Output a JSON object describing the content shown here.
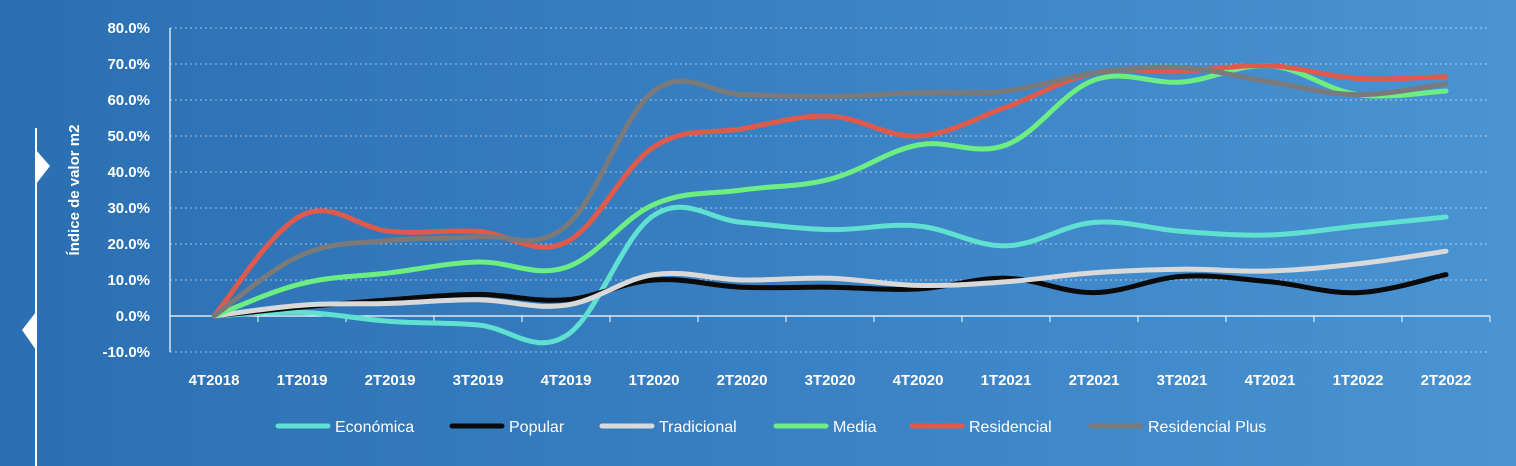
{
  "chart_data": {
    "type": "line",
    "title": "",
    "xlabel": "",
    "ylabel": "Índice de valor m2",
    "ylim": [
      -10,
      80
    ],
    "yticks": [
      "80.0%",
      "70.0%",
      "60.0%",
      "50.0%",
      "40.0%",
      "30.0%",
      "20.0%",
      "10.0%",
      "0.0%",
      "-10.0%"
    ],
    "grid": true,
    "legend_position": "bottom",
    "categories": [
      "4T2018",
      "1T2019",
      "2T2019",
      "3T2019",
      "4T2019",
      "1T2020",
      "2T2020",
      "3T2020",
      "4T2020",
      "1T2021",
      "2T2021",
      "3T2021",
      "4T2021",
      "1T2022",
      "2T2022"
    ],
    "series": [
      {
        "name": "Económica",
        "color": "#5fe0d0",
        "values": [
          0,
          1,
          -1.5,
          -2.5,
          -5.5,
          28,
          26,
          24,
          25,
          19.5,
          26,
          23.5,
          22.5,
          25,
          27.5
        ]
      },
      {
        "name": "Popular",
        "color": "#0a0a0a",
        "values": [
          0,
          2.5,
          4.5,
          6,
          4.5,
          10,
          8,
          8,
          7.5,
          10.5,
          6.5,
          11,
          9.5,
          6.5,
          11.5
        ]
      },
      {
        "name": "Tradicional",
        "color": "#d9d9d9",
        "values": [
          0,
          3,
          3.5,
          4.5,
          3,
          11.5,
          10,
          10.5,
          8.5,
          9.5,
          12,
          13,
          12.5,
          14.5,
          18
        ]
      },
      {
        "name": "Media",
        "color": "#6dee83",
        "values": [
          0,
          9,
          12,
          15,
          13.5,
          31,
          35,
          38,
          47.5,
          47.5,
          65.5,
          65,
          69.5,
          61.5,
          62.5
        ]
      },
      {
        "name": "Residencial",
        "color": "#e05a4b",
        "values": [
          0,
          28,
          23.5,
          23.5,
          20.5,
          47,
          52,
          55.5,
          50,
          58,
          67.5,
          68,
          69.5,
          66,
          66.5
        ]
      },
      {
        "name": "Residencial Plus",
        "color": "#7a7a7a",
        "values": [
          0,
          17,
          21,
          22,
          25,
          62.5,
          61.5,
          61,
          62,
          62.5,
          67.5,
          69,
          65,
          61.5,
          64.5
        ]
      }
    ]
  }
}
